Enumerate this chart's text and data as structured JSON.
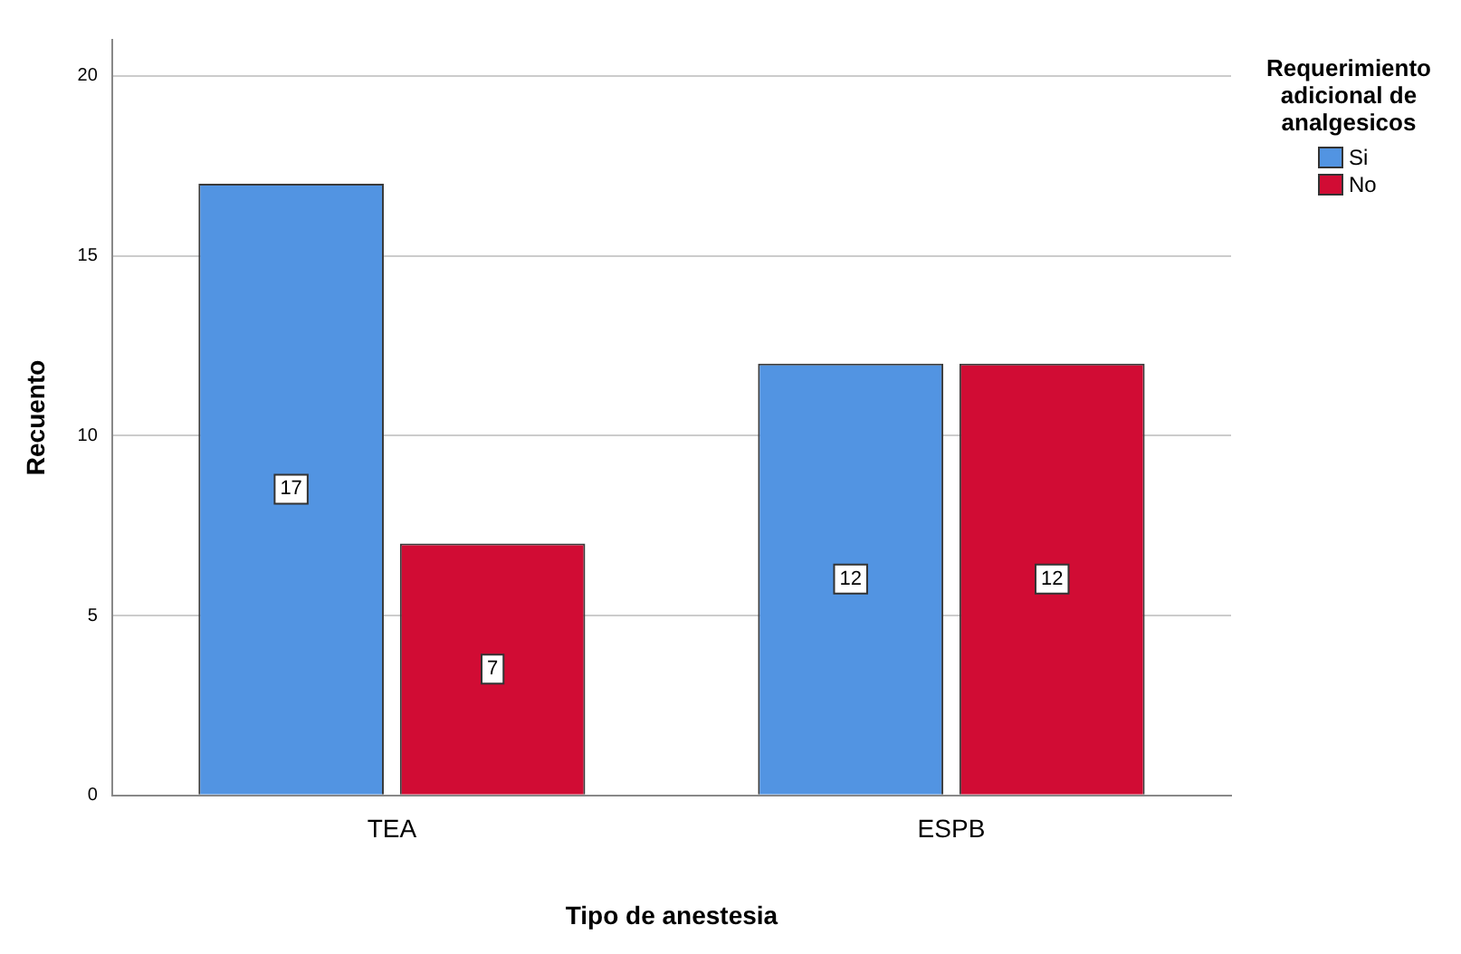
{
  "chart_data": {
    "type": "bar",
    "xlabel": "Tipo de anestesia",
    "ylabel": "Recuento",
    "legend_title": "Requerimiento adicional de analgesicos",
    "categories": [
      "TEA",
      "ESPB"
    ],
    "series": [
      {
        "name": "Si",
        "color": "#5294e2",
        "values": [
          17,
          12
        ]
      },
      {
        "name": "No",
        "color": "#d10c34",
        "values": [
          7,
          12
        ]
      }
    ],
    "ylim": [
      0,
      21
    ],
    "yticks": [
      0,
      5,
      10,
      15,
      20
    ],
    "grid": "y",
    "legend": "top right",
    "data_labels": true
  }
}
